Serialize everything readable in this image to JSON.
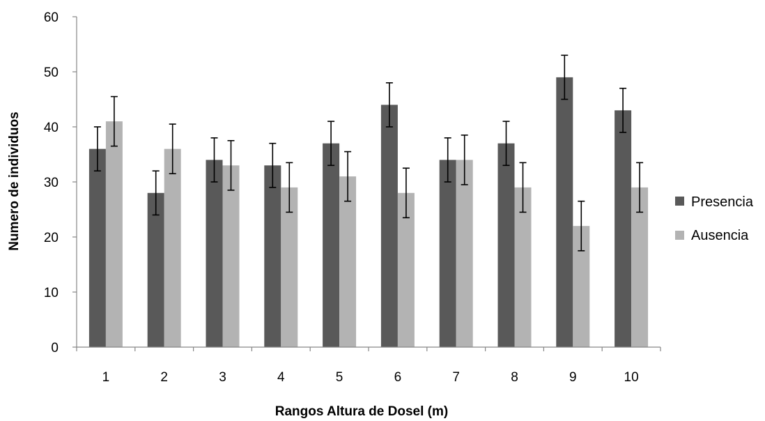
{
  "chart_data": {
    "type": "bar",
    "categories": [
      "1",
      "2",
      "3",
      "4",
      "5",
      "6",
      "7",
      "8",
      "9",
      "10"
    ],
    "series": [
      {
        "name": "Presencia",
        "color": "#595959",
        "values": [
          36,
          28,
          34,
          33,
          37,
          44,
          34,
          37,
          49,
          43
        ],
        "error": [
          4,
          4,
          4,
          4,
          4,
          4,
          4,
          4,
          4,
          4
        ]
      },
      {
        "name": "Ausencia",
        "color": "#b3b3b3",
        "values": [
          41,
          36,
          33,
          29,
          31,
          28,
          34,
          29,
          22,
          29
        ],
        "error": [
          4.5,
          4.5,
          4.5,
          4.5,
          4.5,
          4.5,
          4.5,
          4.5,
          4.5,
          4.5
        ]
      }
    ],
    "ylim": [
      0,
      60
    ],
    "yticks": [
      "0",
      "10",
      "20",
      "30",
      "40",
      "50",
      "60"
    ],
    "xlabel": "Rangos Altura de Dosel (m)",
    "ylabel": "Numero de individuos",
    "legend_position": "right",
    "grid": false
  }
}
